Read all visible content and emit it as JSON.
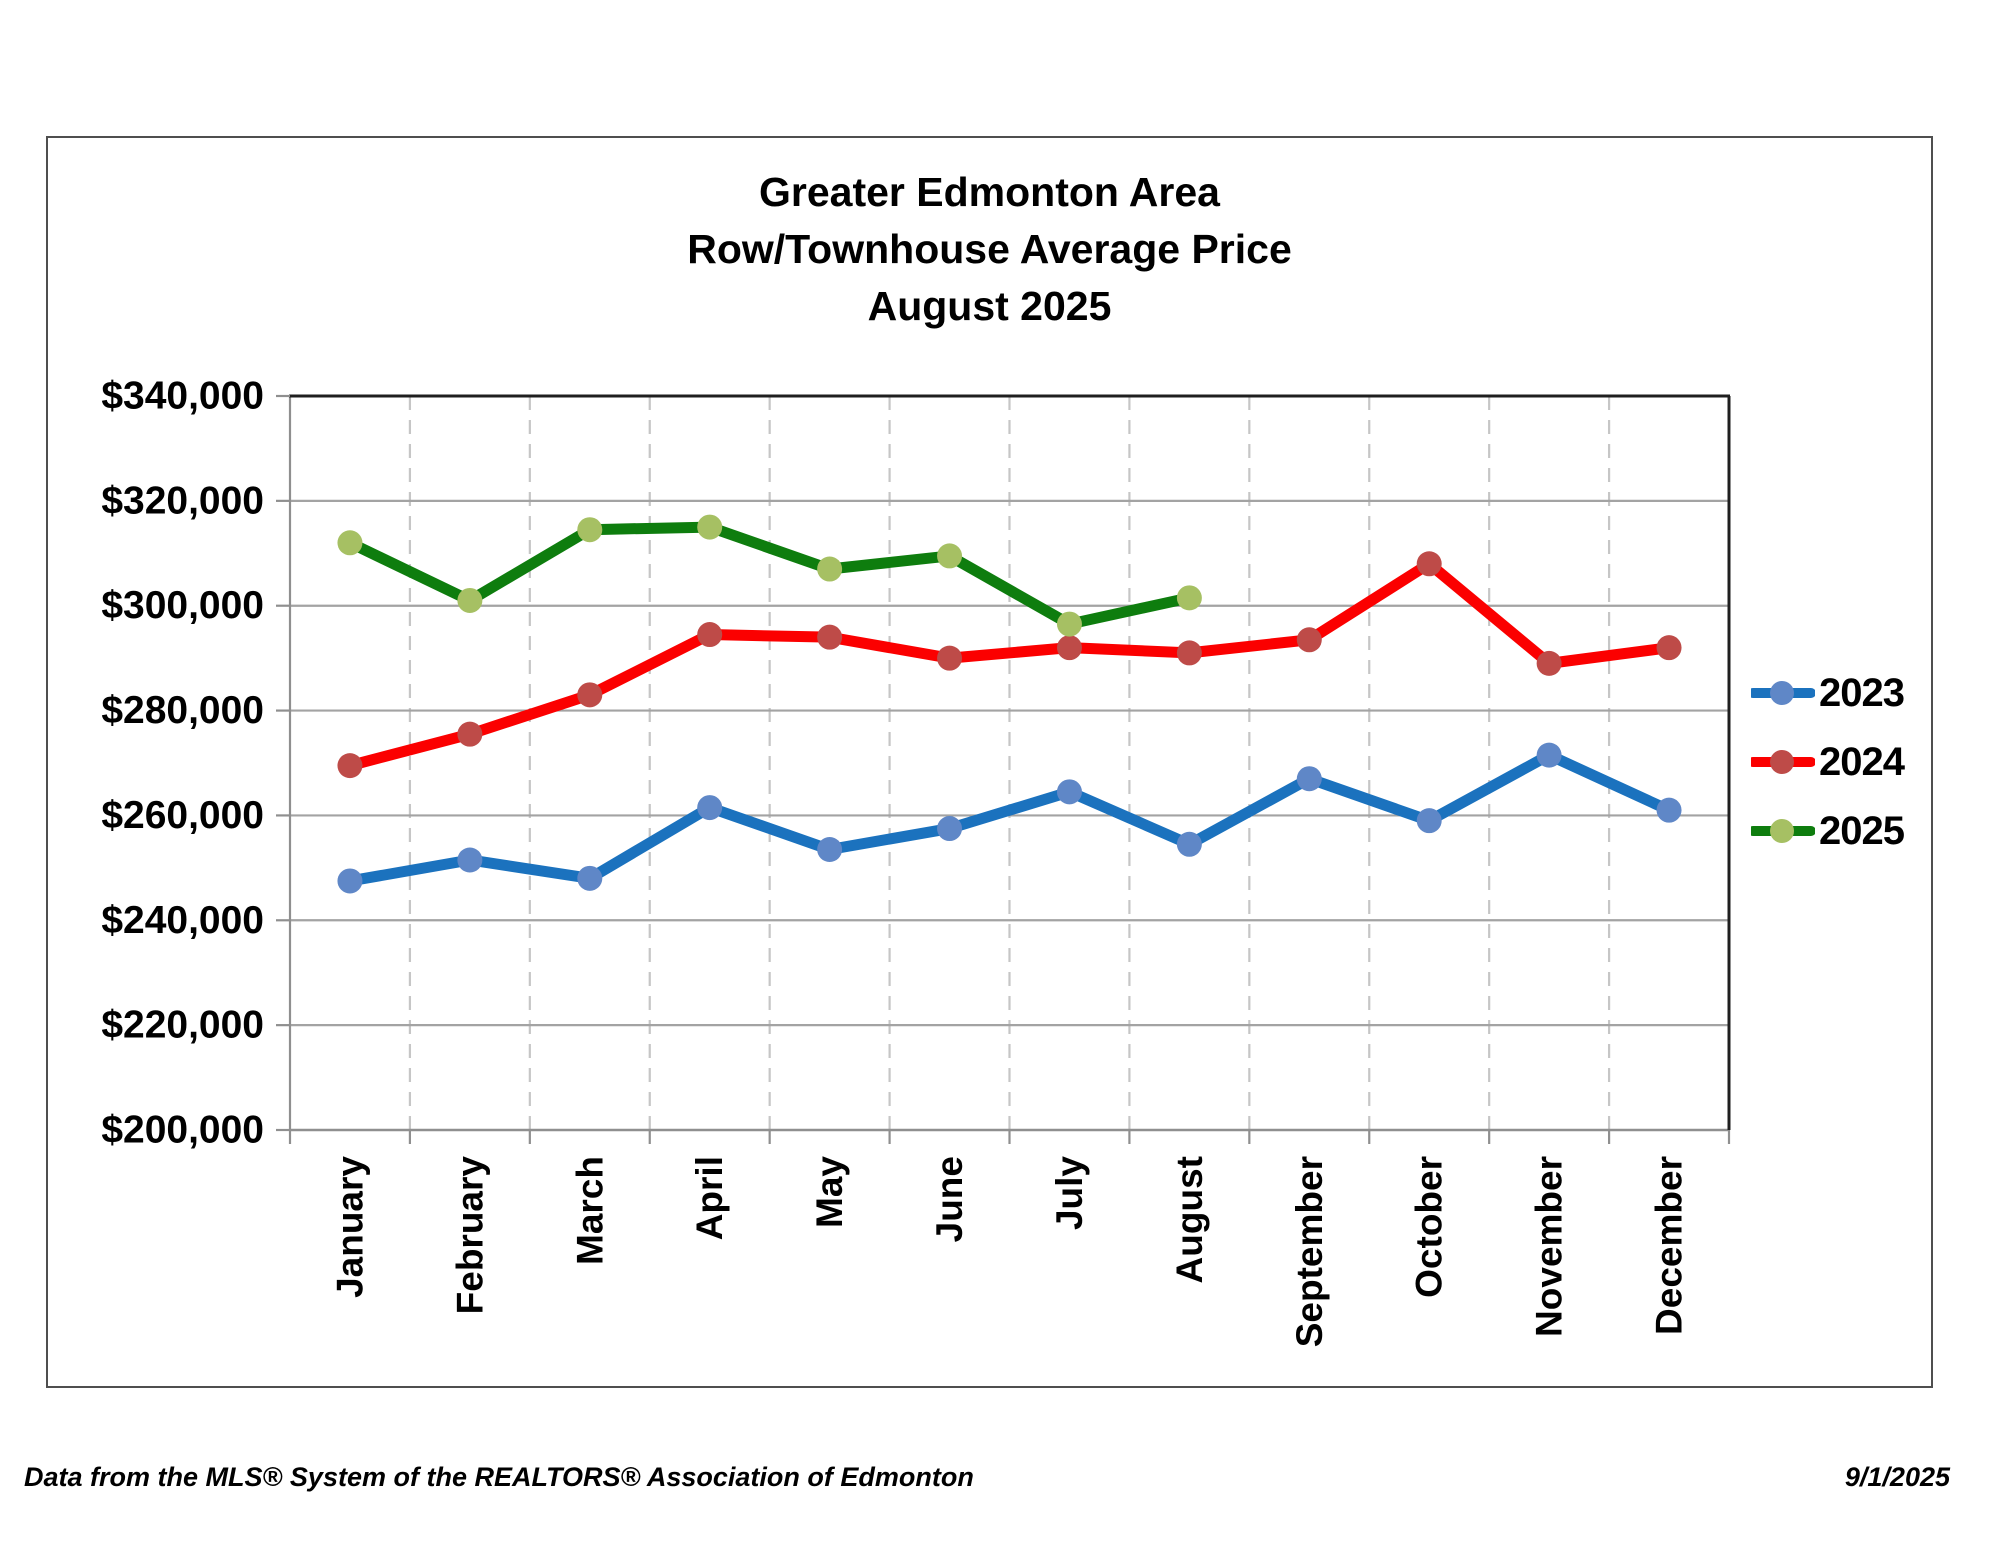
{
  "chart_data": {
    "type": "line",
    "title_lines": [
      "Greater Edmonton Area",
      "Row/Townhouse Average Price",
      "August 2025"
    ],
    "categories": [
      "January",
      "February",
      "March",
      "April",
      "May",
      "June",
      "July",
      "August",
      "September",
      "October",
      "November",
      "December"
    ],
    "series": [
      {
        "name": "2023",
        "values": [
          247500,
          251500,
          248000,
          261500,
          253500,
          257500,
          264500,
          254500,
          267000,
          259000,
          271500,
          261000
        ],
        "line_color": "#1b72be",
        "marker_color": "#5f87c7"
      },
      {
        "name": "2024",
        "values": [
          269500,
          275500,
          283000,
          294500,
          294000,
          290000,
          292000,
          291000,
          293500,
          308000,
          289000,
          292000
        ],
        "line_color": "#fb0000",
        "marker_color": "#be4b48"
      },
      {
        "name": "2025",
        "values": [
          312000,
          301000,
          314500,
          315000,
          307000,
          309500,
          296500,
          301500
        ],
        "line_color": "#0e7d0e",
        "marker_color": "#a6c063"
      }
    ],
    "ylim": [
      200000,
      340000
    ],
    "ytick_step": 20000,
    "ytick_labels": [
      "$340,000",
      "$320,000",
      "$300,000",
      "$280,000",
      "$260,000",
      "$240,000",
      "$220,000",
      "$200,000"
    ],
    "grid": {
      "horizontal": true,
      "vertical_dashed": true
    },
    "legend_position": "right",
    "xlabel": "",
    "ylabel": ""
  },
  "colors": {
    "gridline": "#a3a3a3",
    "dashed_gridline": "#c6c6c6",
    "axis": "#8f8f8f",
    "plot_border": "#1f1f1f",
    "frame_border": "#4f4f4f",
    "text": "#000000",
    "background": "#ffffff"
  },
  "footer": {
    "left": "Data from the MLS® System of the REALTORS® Association of Edmonton",
    "right": "9/1/2025"
  }
}
